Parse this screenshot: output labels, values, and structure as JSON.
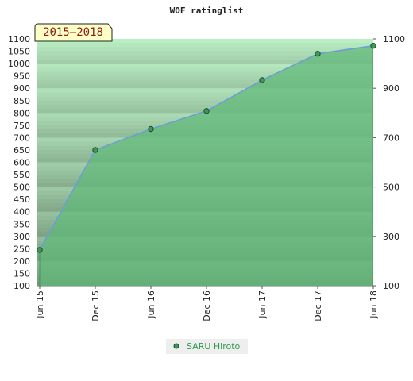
{
  "chart_data": {
    "type": "area",
    "title": "WOF ratinglist",
    "badge": "2015–2018",
    "x": [
      "Jun 15",
      "Dec 15",
      "Jun 16",
      "Dec 16",
      "Jun 17",
      "Dec 17",
      "Jun 18"
    ],
    "series": [
      {
        "name": "SARU Hiroto",
        "values": [
          245,
          650,
          735,
          808,
          933,
          1040,
          1072
        ]
      }
    ],
    "ylim": [
      100,
      1100
    ],
    "y_left_ticks": [
      100,
      150,
      200,
      250,
      300,
      350,
      400,
      450,
      500,
      550,
      600,
      650,
      700,
      750,
      800,
      850,
      900,
      950,
      1000,
      1050,
      1100
    ],
    "y_right_ticks": [
      100,
      300,
      500,
      700,
      900,
      1100
    ],
    "grid": true,
    "legend_position": "bottom-center",
    "colors": {
      "line": "#6a9fd4",
      "fill": "#5fb878",
      "marker": "#3a9a55",
      "marker_edge": "#1f4a2a",
      "legend_text": "#2e9a4e",
      "badge_bg": "#ffffc8",
      "badge_text": "#8b1a1a"
    }
  }
}
